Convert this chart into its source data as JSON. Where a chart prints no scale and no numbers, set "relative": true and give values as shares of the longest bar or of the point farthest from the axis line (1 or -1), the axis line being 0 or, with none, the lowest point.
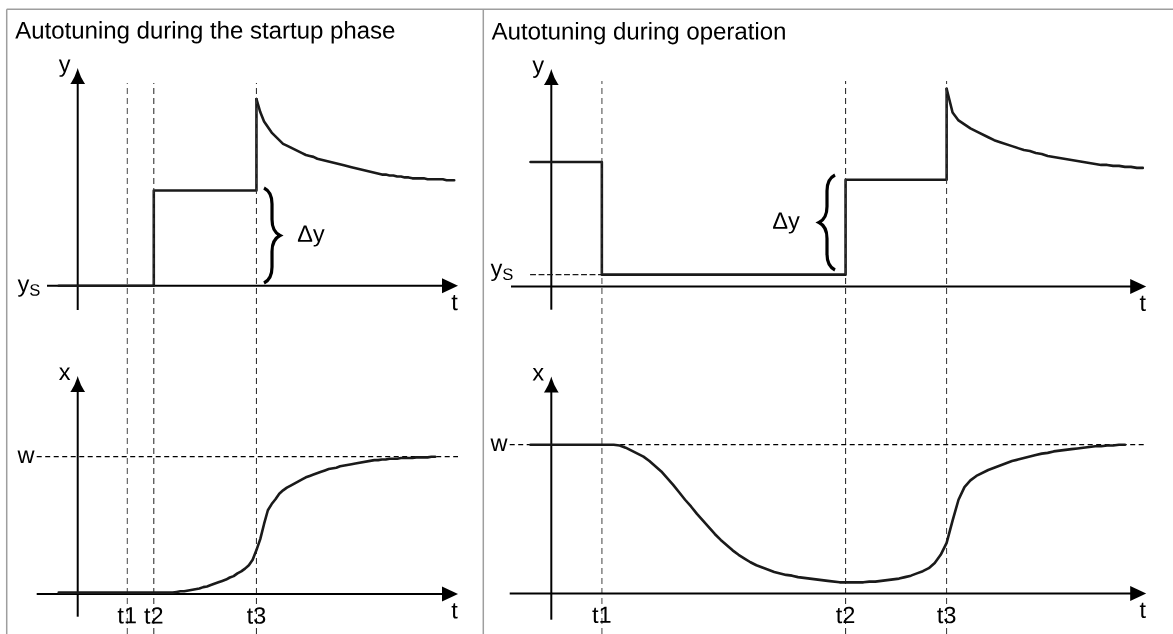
{
  "chart_data": [
    {
      "type": "line",
      "title": "Autotuning during the startup phase",
      "xlabel": "t",
      "ylabel": "y",
      "relative": true,
      "categories": [
        null,
        null,
        null,
        null,
        null,
        null,
        null,
        null,
        null,
        null,
        null,
        null,
        null,
        null,
        null,
        null,
        null,
        null,
        null,
        null,
        null,
        null,
        null,
        null,
        null,
        null,
        null,
        null,
        null,
        null,
        null,
        null,
        null,
        null,
        null,
        null,
        null,
        null,
        null,
        null,
        null,
        null,
        null,
        null,
        null,
        null,
        null,
        null,
        null,
        null,
        null,
        null,
        null,
        null,
        null,
        null,
        null,
        null,
        null,
        null,
        null,
        null,
        null,
        null,
        null,
        null,
        null,
        null,
        null,
        null,
        null,
        null,
        null,
        null,
        null,
        null,
        null,
        null,
        null,
        null,
        null,
        null,
        null,
        null,
        null,
        null,
        null,
        null,
        null,
        null,
        null,
        null,
        null,
        null,
        null,
        null,
        null,
        null,
        null,
        null,
        null,
        null,
        null,
        null,
        null
      ],
      "series": [
        {
          "type": "step",
          "color": "#1a1a1a",
          "values": [
            0,
            0,
            0,
            0,
            0,
            0,
            0,
            0,
            0,
            0,
            0,
            0,
            0,
            0,
            0,
            0,
            0,
            0,
            0,
            0,
            0,
            0,
            0,
            0,
            0,
            0.51,
            0.51,
            0.51,
            0.51,
            0.51,
            0.51,
            0.51,
            0.51,
            0.51,
            0.51,
            0.51,
            0.51,
            0.51,
            0.51,
            0.51,
            0.51,
            0.51,
            0.51,
            0.51,
            0.51,
            0.51,
            0.51,
            0.51,
            0.51,
            0.51,
            0.51,
            0.51,
            1,
            null,
            null,
            null,
            null,
            null,
            null,
            null,
            null,
            null,
            null,
            null,
            null,
            null,
            null,
            null,
            null,
            null,
            null,
            null,
            null,
            null,
            null,
            null,
            null,
            null,
            null,
            null,
            null,
            null,
            null,
            null,
            null,
            null,
            null,
            null,
            null,
            null,
            null,
            null,
            null,
            null,
            null,
            null,
            null,
            null,
            null,
            null,
            null,
            null,
            null,
            null,
            null
          ]
        },
        {
          "color": "#1a1a1a",
          "values": [
            null,
            null,
            null,
            null,
            null,
            null,
            null,
            null,
            null,
            null,
            null,
            null,
            null,
            null,
            null,
            null,
            null,
            null,
            null,
            null,
            null,
            null,
            null,
            null,
            null,
            null,
            null,
            null,
            null,
            null,
            null,
            null,
            null,
            null,
            null,
            null,
            null,
            null,
            null,
            null,
            null,
            null,
            null,
            null,
            null,
            null,
            null,
            null,
            null,
            null,
            null,
            null,
            1,
            0.93,
            0.88,
            0.85,
            0.82,
            0.8,
            0.78,
            0.76,
            0.75,
            0.74,
            0.73,
            0.72,
            0.71,
            0.7,
            0.695,
            0.69,
            0.68,
            0.675,
            0.67,
            0.665,
            0.66,
            0.655,
            0.65,
            0.645,
            0.64,
            0.635,
            0.63,
            0.625,
            0.62,
            0.615,
            0.61,
            0.605,
            0.6,
            0.595,
            0.595,
            0.59,
            0.59,
            0.585,
            0.585,
            0.58,
            0.58,
            0.575,
            0.575,
            0.575,
            0.575,
            0.57,
            0.57,
            0.57,
            0.57,
            0.57,
            0.565,
            0.565,
            0.565
          ]
        }
      ],
      "annotations": [
        "y$_{S}$",
        "Δy"
      ]
    },
    {
      "type": "line",
      "title": "Autotuning during operation",
      "xlabel": "t",
      "ylabel": "y",
      "relative": true,
      "categories": [
        null,
        null,
        null,
        null,
        null,
        null,
        null,
        null,
        null,
        null,
        null,
        null,
        null,
        null,
        null,
        null,
        null,
        null,
        null,
        null,
        null,
        null,
        null,
        null,
        null,
        null,
        null,
        null,
        null,
        null,
        null,
        null,
        null,
        null,
        null,
        null,
        null,
        null,
        null,
        null,
        null,
        null,
        null,
        null,
        null,
        null,
        null,
        null,
        null,
        null,
        null,
        null,
        null,
        null,
        null,
        null,
        null,
        null,
        null,
        null,
        null,
        null,
        null,
        null,
        null,
        null,
        null,
        null,
        null,
        null,
        null,
        null,
        null,
        null,
        null,
        null,
        null,
        null,
        null,
        null,
        null,
        null,
        null,
        null,
        null,
        null,
        null,
        null,
        null,
        null,
        null,
        null,
        null,
        null,
        null,
        null,
        null,
        null,
        null,
        null,
        null,
        null,
        null,
        null
      ],
      "series": [
        {
          "type": "step",
          "color": "#1a1a1a",
          "values": [
            0.63,
            0.63,
            0.63,
            0.63,
            0.63,
            0.63,
            0.63,
            0.63,
            0.63,
            0.63,
            0.63,
            0.63,
            0.06,
            0.06,
            0.06,
            0.06,
            0.06,
            0.06,
            0.06,
            0.06,
            0.06,
            0.06,
            0.06,
            0.06,
            0.06,
            0.06,
            0.06,
            0.06,
            0.06,
            0.06,
            0.06,
            0.06,
            0.06,
            0.06,
            0.06,
            0.06,
            0.06,
            0.06,
            0.06,
            0.06,
            0.06,
            0.06,
            0.06,
            0.06,
            0.06,
            0.06,
            0.06,
            0.06,
            0.06,
            0.06,
            0.06,
            0.06,
            0.06,
            0.54,
            0.54,
            0.54,
            0.54,
            0.54,
            0.54,
            0.54,
            0.54,
            0.54,
            0.54,
            0.54,
            0.54,
            0.54,
            0.54,
            0.54,
            0.54,
            0.54,
            1,
            null,
            null,
            null,
            null,
            null,
            null,
            null,
            null,
            null,
            null,
            null,
            null,
            null,
            null,
            null,
            null,
            null,
            null,
            null,
            null,
            null,
            null,
            null,
            null,
            null,
            null,
            null,
            null,
            null,
            null,
            null,
            null,
            null
          ]
        },
        {
          "color": "#1a1a1a",
          "values": [
            null,
            null,
            null,
            null,
            null,
            null,
            null,
            null,
            null,
            null,
            null,
            null,
            null,
            null,
            null,
            null,
            null,
            null,
            null,
            null,
            null,
            null,
            null,
            null,
            null,
            null,
            null,
            null,
            null,
            null,
            null,
            null,
            null,
            null,
            null,
            null,
            null,
            null,
            null,
            null,
            null,
            null,
            null,
            null,
            null,
            null,
            null,
            null,
            null,
            null,
            null,
            null,
            null,
            null,
            null,
            null,
            null,
            null,
            null,
            null,
            null,
            null,
            null,
            null,
            null,
            null,
            null,
            null,
            null,
            null,
            1,
            0.88,
            0.84,
            0.82,
            0.8,
            0.785,
            0.77,
            0.755,
            0.74,
            0.73,
            0.72,
            0.71,
            0.7,
            0.69,
            0.685,
            0.675,
            0.67,
            0.66,
            0.655,
            0.65,
            0.645,
            0.64,
            0.635,
            0.63,
            0.625,
            0.62,
            0.615,
            0.615,
            0.61,
            0.61,
            0.605,
            0.605,
            0.6,
            0.6
          ]
        },
        {
          "color": "#1a1a1a",
          "line_style": "dashed",
          "values": [
            0.06,
            0.06,
            0.06,
            0.06,
            0.06,
            0.06,
            0.06,
            0.06,
            0.06,
            0.06,
            0.06,
            0.06,
            0.06,
            null,
            null,
            null,
            null,
            null,
            null,
            null,
            null,
            null,
            null,
            null,
            null,
            null,
            null,
            null,
            null,
            null,
            null,
            null,
            null,
            null,
            null,
            null,
            null,
            null,
            null,
            null,
            null,
            null,
            null,
            null,
            null,
            null,
            null,
            null,
            null,
            null,
            null,
            null,
            null,
            null,
            null,
            null,
            null,
            null,
            null,
            null,
            null,
            null,
            null,
            null,
            null,
            null,
            null,
            null,
            null,
            null,
            null,
            null,
            null,
            null,
            null,
            null,
            null,
            null,
            null,
            null,
            null,
            null,
            null,
            null,
            null,
            null,
            null,
            null,
            null,
            null,
            null,
            null,
            null,
            null,
            null,
            null,
            null,
            null,
            null,
            null,
            null,
            null,
            null,
            null
          ]
        }
      ],
      "annotations": [
        "y$_{S}$",
        "Δy"
      ]
    },
    {
      "type": "line",
      "xlabel": "t",
      "ylabel": "x",
      "relative": true,
      "tick_labels": "x",
      "grid": "x",
      "categories": [
        null,
        null,
        null,
        null,
        null,
        null,
        null,
        null,
        null,
        null,
        null,
        null,
        null,
        null,
        null,
        null,
        null,
        null,
        "t1",
        null,
        null,
        null,
        null,
        null,
        null,
        "t2",
        null,
        null,
        null,
        null,
        null,
        null,
        null,
        null,
        null,
        null,
        null,
        null,
        null,
        null,
        null,
        null,
        null,
        null,
        null,
        null,
        null,
        null,
        null,
        null,
        null,
        null,
        "t3",
        null,
        null,
        null,
        null,
        null,
        null,
        null,
        null,
        null,
        null,
        null,
        null,
        null,
        null,
        null,
        null,
        null,
        null,
        null,
        null,
        null,
        null,
        null,
        null,
        null,
        null,
        null,
        null,
        null,
        null,
        null,
        null,
        null,
        null,
        null,
        null,
        null,
        null,
        null,
        null,
        null,
        null,
        null,
        null,
        null,
        null,
        null,
        null,
        null,
        null,
        null,
        null
      ],
      "series": [
        {
          "color": "#1a1a1a",
          "values": [
            0.01,
            0.01,
            0.01,
            0.01,
            0.01,
            0.01,
            0.01,
            0.01,
            0.01,
            0.01,
            0.01,
            0.01,
            0.01,
            0.01,
            0.01,
            0.01,
            0.01,
            0.01,
            0.01,
            0.01,
            0.01,
            0.01,
            0.01,
            0.01,
            0.01,
            0.01,
            0.01,
            0.01,
            0.01,
            0.01,
            0.01,
            0.015,
            0.02,
            0.02,
            0.025,
            0.03,
            0.035,
            0.04,
            0.05,
            0.055,
            0.065,
            0.075,
            0.085,
            0.095,
            0.105,
            0.12,
            0.13,
            0.15,
            0.165,
            0.185,
            0.21,
            0.25,
            0.32,
            0.4,
            0.51,
            0.61,
            0.655,
            0.69,
            0.73,
            0.755,
            0.775,
            0.79,
            0.805,
            0.82,
            0.835,
            0.85,
            0.86,
            0.87,
            0.88,
            0.89,
            0.9,
            0.91,
            0.915,
            0.92,
            0.93,
            0.935,
            0.94,
            0.945,
            0.95,
            0.955,
            0.96,
            0.965,
            0.97,
            0.975,
            0.975,
            0.98,
            0.98,
            0.985,
            0.985,
            0.985,
            0.99,
            0.99,
            0.99,
            0.99,
            0.995,
            0.995,
            0.995,
            0.995,
            1,
            1,
            null,
            null,
            null,
            null,
            null
          ]
        }
      ],
      "ref_lines": [
        {
          "axis": "y",
          "value": 1,
          "label": "w",
          "line_style": "dashed"
        }
      ]
    },
    {
      "type": "line",
      "xlabel": "t",
      "ylabel": "x",
      "relative": true,
      "tick_labels": "x",
      "grid": "x",
      "categories": [
        null,
        null,
        null,
        null,
        null,
        null,
        null,
        null,
        null,
        null,
        null,
        null,
        "t1",
        null,
        null,
        null,
        null,
        null,
        null,
        null,
        null,
        null,
        null,
        null,
        null,
        null,
        null,
        null,
        null,
        null,
        null,
        null,
        null,
        null,
        null,
        null,
        null,
        null,
        null,
        null,
        null,
        null,
        null,
        null,
        null,
        null,
        null,
        null,
        null,
        null,
        null,
        null,
        null,
        "t2",
        null,
        null,
        null,
        null,
        null,
        null,
        null,
        null,
        null,
        null,
        null,
        null,
        null,
        null,
        null,
        null,
        "t3",
        null,
        null,
        null,
        null,
        null,
        null,
        null,
        null,
        null,
        null,
        null,
        null,
        null,
        null,
        null,
        null,
        null,
        null,
        null,
        null,
        null,
        null,
        null,
        null,
        null,
        null,
        null,
        null,
        null,
        null,
        null,
        null,
        null
      ],
      "series": [
        {
          "color": "#1a1a1a",
          "values": [
            1,
            1,
            1,
            1,
            1,
            1,
            1,
            1,
            1,
            1,
            1,
            1,
            1,
            1,
            1,
            0.995,
            0.98,
            0.96,
            0.94,
            0.92,
            0.89,
            0.855,
            0.82,
            0.775,
            0.73,
            0.68,
            0.63,
            0.585,
            0.535,
            0.49,
            0.445,
            0.4,
            0.36,
            0.325,
            0.29,
            0.26,
            0.235,
            0.21,
            0.19,
            0.175,
            0.16,
            0.145,
            0.135,
            0.125,
            0.12,
            0.11,
            0.105,
            0.1,
            0.095,
            0.09,
            0.085,
            0.08,
            0.075,
            0.075,
            0.075,
            0.075,
            0.075,
            0.08,
            0.08,
            0.085,
            0.09,
            0.095,
            0.1,
            0.11,
            0.12,
            0.135,
            0.15,
            0.17,
            0.205,
            0.26,
            0.34,
            0.49,
            0.63,
            0.715,
            0.76,
            0.79,
            0.81,
            0.83,
            0.845,
            0.86,
            0.875,
            0.89,
            0.9,
            0.91,
            0.92,
            0.93,
            0.94,
            0.945,
            0.955,
            0.96,
            0.965,
            0.97,
            0.975,
            0.98,
            0.985,
            0.99,
            0.99,
            0.995,
            0.995,
            1,
            1,
            null,
            null,
            null
          ]
        }
      ],
      "ref_lines": [
        {
          "axis": "y",
          "value": 1,
          "label": "w",
          "line_style": "dashed"
        }
      ]
    }
  ]
}
